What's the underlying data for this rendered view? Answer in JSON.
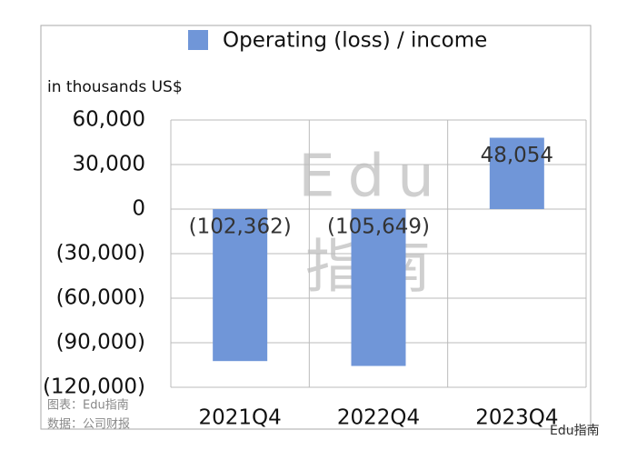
{
  "chart_data": {
    "type": "bar",
    "y_axis_label": "in thousands US$",
    "categories": [
      "2021Q4",
      "2022Q4",
      "2023Q4"
    ],
    "series": [
      {
        "name": "Operating (loss) / income",
        "color": "#7096d8",
        "values": [
          -102362,
          -105649,
          48054
        ],
        "value_labels": [
          "(102,362)",
          "(105,649)",
          "48,054"
        ]
      }
    ],
    "ylim": [
      -120000,
      60000
    ],
    "yticks": [
      {
        "value": 60000,
        "label": "60,000"
      },
      {
        "value": 30000,
        "label": "30,000"
      },
      0,
      {
        "value": -30000,
        "label": "(30,000)"
      },
      {
        "value": -60000,
        "label": "(60,000)"
      },
      {
        "value": -90000,
        "label": "(90,000)"
      },
      {
        "value": -120000,
        "label": "(120,000)"
      }
    ],
    "grid": true,
    "watermark": [
      "Edu",
      "指南"
    ],
    "source_notes": [
      "图表：Edu指南",
      "数据：公司财报"
    ],
    "brand": "Edu指南"
  }
}
